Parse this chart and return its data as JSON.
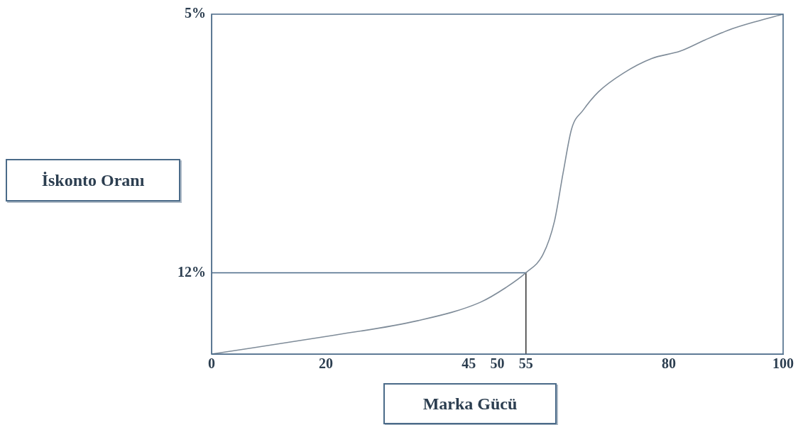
{
  "chart_data": {
    "type": "line",
    "xlabel": "Marka Gücü",
    "ylabel": "İskonto Oranı",
    "xlim": [
      0,
      100
    ],
    "xticks": [
      0,
      20,
      45,
      50,
      55,
      80,
      100
    ],
    "ylim": [
      14.2,
      5
    ],
    "yticks": [
      {
        "value": 5,
        "label": "5%"
      },
      {
        "value": 12,
        "label": "12%"
      }
    ],
    "grid": false,
    "legend": false,
    "marker": "none",
    "line_style": "solid",
    "series": [
      {
        "color": "#7f8c99",
        "x": [
          0,
          21,
          36,
          47,
          51.5,
          55,
          58,
          60,
          61.5,
          63,
          65,
          67.7,
          72,
          77,
          82,
          86.3,
          91,
          95.2,
          100
        ],
        "values": [
          14.2,
          13.7,
          13.3,
          12.8,
          12.4,
          12,
          11.5,
          10.6,
          9.3,
          8.1,
          7.6,
          7.1,
          6.6,
          6.2,
          6.0,
          5.7,
          5.4,
          5.2,
          5
        ]
      },
      {
        "color": "#4a6a88",
        "x": [
          0,
          55
        ],
        "values": [
          12,
          12
        ]
      },
      {
        "color": "#3a3a3a",
        "x": [
          55,
          55
        ],
        "values": [
          12,
          14.2
        ]
      }
    ]
  }
}
